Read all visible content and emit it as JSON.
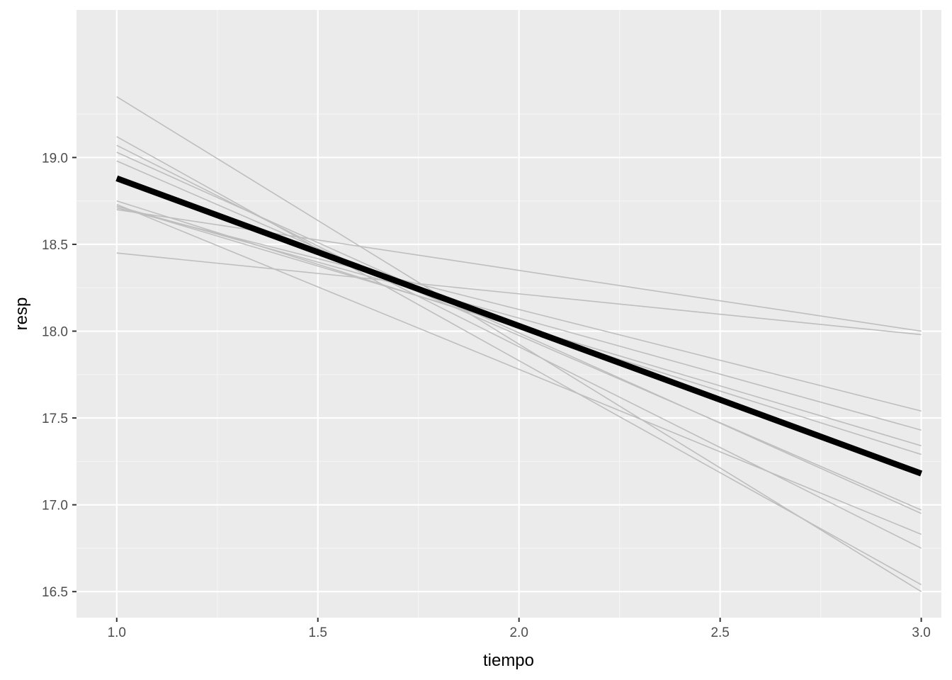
{
  "chart_data": {
    "type": "line",
    "title": "",
    "xlabel": "tiempo",
    "ylabel": "resp",
    "xlim": [
      0.9,
      3.05
    ],
    "ylim": [
      16.35,
      19.85
    ],
    "x_ticks": [
      1.0,
      1.5,
      2.0,
      2.5,
      3.0
    ],
    "x_tick_labels": [
      "1.0",
      "1.5",
      "2.0",
      "2.5",
      "3.0"
    ],
    "y_ticks": [
      16.5,
      17.0,
      17.5,
      18.0,
      18.5,
      19.0
    ],
    "y_tick_labels": [
      "16.5",
      "17.0",
      "17.5",
      "18.0",
      "18.5",
      "19.0"
    ],
    "grid": true,
    "background": "#ebebeb",
    "individual_color": "#bebebe",
    "mean_color": "#000000",
    "individual_lines": [
      {
        "x": [
          1,
          3
        ],
        "y": [
          19.35,
          16.5
        ]
      },
      {
        "x": [
          1,
          3
        ],
        "y": [
          19.12,
          16.54
        ]
      },
      {
        "x": [
          1,
          3
        ],
        "y": [
          19.07,
          16.75
        ]
      },
      {
        "x": [
          1,
          3
        ],
        "y": [
          19.03,
          16.95
        ]
      },
      {
        "x": [
          1,
          3
        ],
        "y": [
          18.98,
          16.97
        ]
      },
      {
        "x": [
          1,
          3
        ],
        "y": [
          18.75,
          17.29
        ]
      },
      {
        "x": [
          1,
          3
        ],
        "y": [
          18.72,
          17.43
        ]
      },
      {
        "x": [
          1,
          3
        ],
        "y": [
          18.71,
          17.54
        ]
      },
      {
        "x": [
          1,
          3
        ],
        "y": [
          18.7,
          18.0
        ]
      },
      {
        "x": [
          1,
          3
        ],
        "y": [
          18.45,
          17.98
        ]
      },
      {
        "x": [
          1,
          3
        ],
        "y": [
          18.73,
          16.83
        ]
      },
      {
        "x": [
          1,
          3
        ],
        "y": [
          18.72,
          17.34
        ]
      }
    ],
    "mean_line": {
      "x": [
        1,
        3
      ],
      "y": [
        18.88,
        17.18
      ]
    }
  }
}
